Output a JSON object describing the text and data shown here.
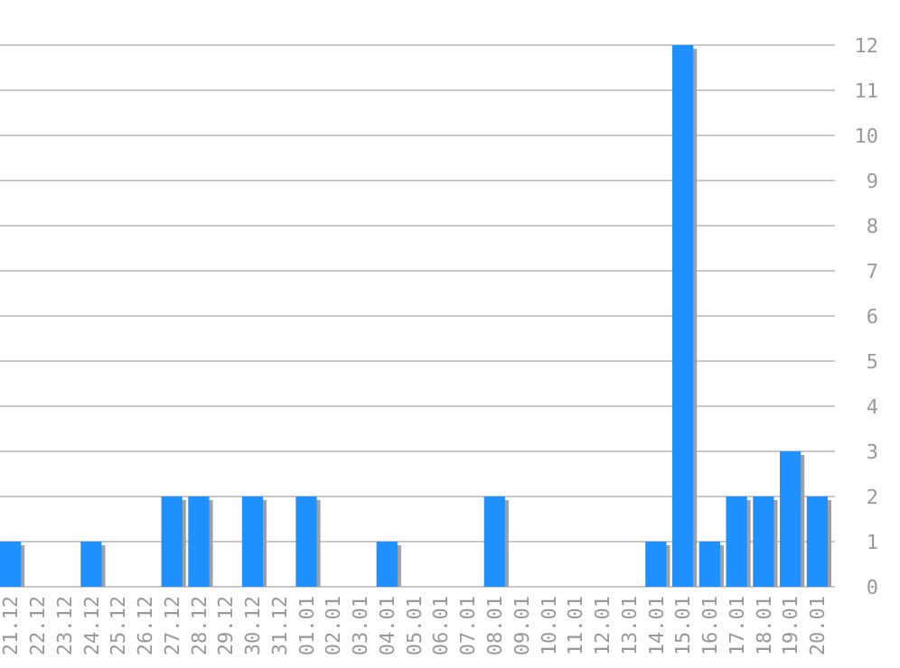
{
  "chart_data": {
    "type": "bar",
    "categories": [
      "21.12",
      "22.12",
      "23.12",
      "24.12",
      "25.12",
      "26.12",
      "27.12",
      "28.12",
      "29.12",
      "30.12",
      "31.12",
      "01.01",
      "02.01",
      "03.01",
      "04.01",
      "05.01",
      "06.01",
      "07.01",
      "08.01",
      "09.01",
      "10.01",
      "11.01",
      "12.01",
      "13.01",
      "14.01",
      "15.01",
      "16.01",
      "17.01",
      "18.01",
      "19.01",
      "20.01"
    ],
    "values": [
      1,
      0,
      0,
      1,
      0,
      0,
      2,
      2,
      0,
      2,
      0,
      2,
      0,
      0,
      1,
      0,
      0,
      0,
      2,
      0,
      0,
      0,
      0,
      0,
      1,
      12,
      1,
      2,
      2,
      3,
      2
    ],
    "color": "#1e90ff",
    "ylim": [
      0,
      12
    ],
    "yticks": [
      0,
      1,
      2,
      3,
      4,
      5,
      6,
      7,
      8,
      9,
      10,
      11,
      12
    ],
    "grid": "y"
  }
}
